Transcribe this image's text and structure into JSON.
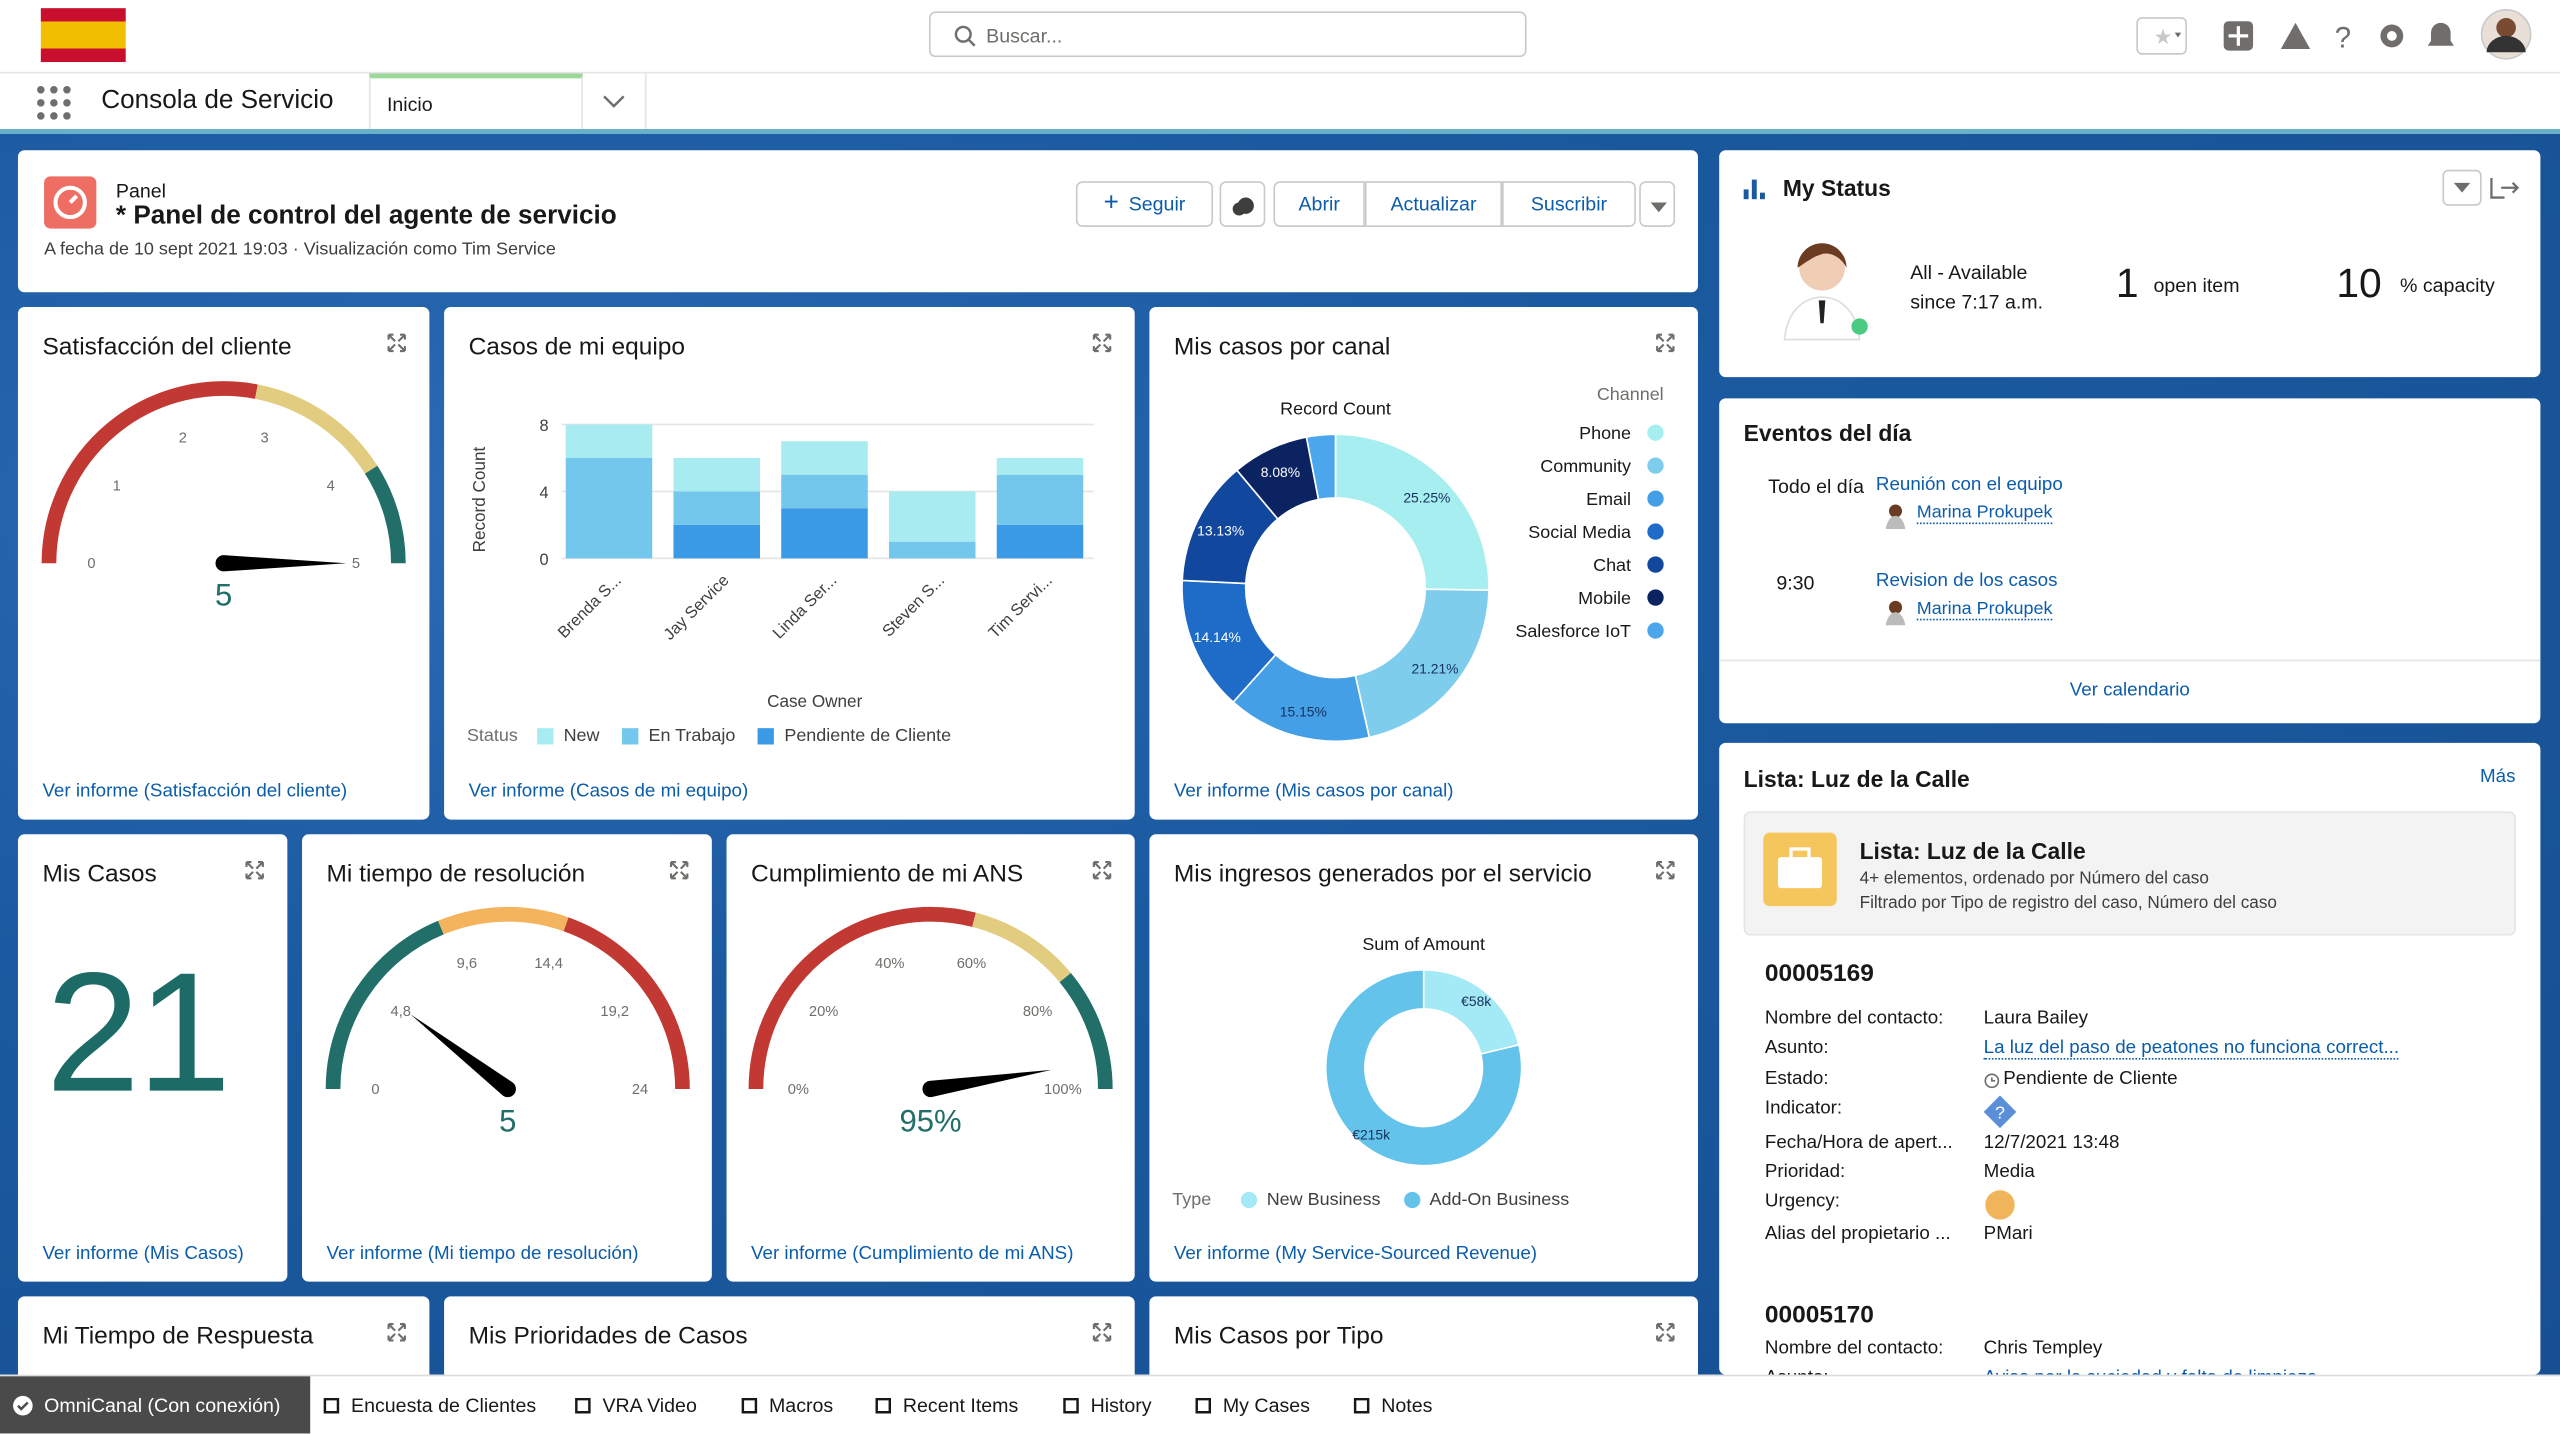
{
  "header": {
    "search_placeholder": "Buscar...",
    "app_name": "Consola de Servicio",
    "tab": "Inicio"
  },
  "dashboard": {
    "label": "Panel",
    "title": "* Panel de control del agente de servicio",
    "subtitle": "A fecha de 10 sept 2021 19:03 · Visualización como Tim Service",
    "buttons": [
      "Seguir",
      "Abrir",
      "Actualizar",
      "Suscribir"
    ]
  },
  "widgets": {
    "satisfaction": {
      "type": "gauge",
      "title": "Satisfacción del cliente",
      "ticks": [
        0,
        1,
        2,
        3,
        4,
        5
      ],
      "value": 5,
      "bands": [
        {
          "to": 2.8,
          "color": "#c23934"
        },
        {
          "to": 4.1,
          "color": "#e2cc80"
        },
        {
          "to": 5,
          "color": "#226e68"
        }
      ],
      "link": "Ver informe (Satisfacción del cliente)"
    },
    "team_cases": {
      "type": "bar",
      "title": "Casos de mi equipo",
      "ylabel": "Record Count",
      "xlabel": "Case Owner",
      "ylim": [
        0,
        8
      ],
      "yticks": [
        0,
        4,
        8
      ],
      "grid": true,
      "categories": [
        "Brenda S...",
        "Jay Service",
        "Linda Ser...",
        "Steven S...",
        "Tim Servi..."
      ],
      "legend_title": "Status",
      "series": [
        {
          "name": "Pendiente de Cliente",
          "color": "#3a9ae6",
          "values": [
            0,
            2,
            3,
            0,
            2
          ]
        },
        {
          "name": "En Trabajo",
          "color": "#73c7ec",
          "values": [
            6,
            2,
            2,
            1,
            3
          ]
        },
        {
          "name": "New",
          "color": "#a8ecf2",
          "values": [
            2,
            2,
            2,
            3,
            1
          ]
        }
      ],
      "legend_order": [
        2,
        1,
        0
      ],
      "link": "Ver informe (Casos de mi equipo)"
    },
    "channel": {
      "type": "donut",
      "title": "Mis casos por canal",
      "label": "Record Count",
      "legend_title": "Channel",
      "categories": [
        "Phone",
        "Community",
        "Email",
        "Social Media",
        "Chat",
        "Mobile",
        "Salesforce IoT"
      ],
      "colors": [
        "#a6eef0",
        "#7ecdec",
        "#449fe6",
        "#1e6bc8",
        "#11479c",
        "#0b2461",
        "#4ca6ec"
      ],
      "values": [
        25.25,
        21.21,
        15.15,
        14.14,
        13.13,
        8.08,
        3.03
      ],
      "value_labels": [
        "25.25%",
        "21.21%",
        "15.15%",
        "14.14%",
        "13.13%",
        "8.08%",
        null
      ],
      "link": "Ver informe (Mis casos por canal)"
    },
    "my_cases": {
      "type": "metric",
      "title": "Mis Casos",
      "value": 21,
      "link": "Ver informe (Mis Casos)"
    },
    "resolution": {
      "type": "gauge",
      "title": "Mi tiempo de resolución",
      "ticks": [
        0,
        {
          "value": 4.8,
          "label": "4,8"
        },
        {
          "value": 9.6,
          "label": "9,6"
        },
        {
          "value": 14.4,
          "label": "14,4"
        },
        {
          "value": 19.2,
          "label": "19,2"
        },
        24
      ],
      "value": 5,
      "bands": [
        {
          "to": 9,
          "color": "#226e68"
        },
        {
          "to": 14.6,
          "color": "#f4b45e"
        },
        {
          "to": 24,
          "color": "#c23934"
        }
      ],
      "link": "Ver informe (Mi tiempo de resolución)"
    },
    "sla": {
      "type": "gauge",
      "title": "Cumplimiento de mi ANS",
      "ticks": [
        {
          "value": 0,
          "label": "0%"
        },
        {
          "value": 20,
          "label": "20%"
        },
        {
          "value": 40,
          "label": "40%"
        },
        {
          "value": 60,
          "label": "60%"
        },
        {
          "value": 80,
          "label": "80%"
        },
        {
          "value": 100,
          "label": "100%"
        }
      ],
      "value": 95,
      "value_label": "95%",
      "bands": [
        {
          "to": 58,
          "color": "#c23934"
        },
        {
          "to": 78,
          "color": "#e2cc80"
        },
        {
          "to": 100,
          "color": "#226e68"
        }
      ],
      "link": "Ver informe (Cumplimiento de mi ANS)"
    },
    "revenue": {
      "type": "donut",
      "title": "Mis ingresos generados por el servicio",
      "label": "Sum of Amount",
      "legend_title": "Type",
      "categories": [
        "New Business",
        "Add-On Business"
      ],
      "colors": [
        "#a4e9f6",
        "#64c3ea"
      ],
      "values": [
        58000,
        215000
      ],
      "value_labels": [
        "€58k",
        "€215k"
      ],
      "link": "Ver informe (My Service-Sourced Revenue)"
    },
    "response": {
      "title": "Mi Tiempo de Respuesta"
    },
    "priorities": {
      "title": "Mis Prioridades de Casos"
    },
    "by_type": {
      "title": "Mis Casos por Tipo"
    }
  },
  "status": {
    "title": "My Status",
    "state": "All - Available",
    "since": "since 7:17 a.m.",
    "open_count": 1,
    "open_label": "open item",
    "capacity": 10,
    "capacity_label": "% capacity"
  },
  "events": {
    "title": "Eventos del día",
    "items": [
      {
        "time": "Todo el día",
        "subject": "Reunión con el equipo",
        "owner": "Marina Prokupek"
      },
      {
        "time": "9:30",
        "subject": "Revision de los casos",
        "owner": "Marina Prokupek"
      }
    ],
    "link": "Ver calendario"
  },
  "list": {
    "title": "Lista: Luz de la Calle",
    "more": "Más",
    "card_title": "Lista: Luz de la Calle",
    "card_line1": "4+ elementos, ordenado por Número del caso",
    "card_line2": "Filtrado por Tipo de registro del caso, Número del caso",
    "records": [
      {
        "number": "00005169",
        "fields": [
          {
            "label": "Nombre del contacto:",
            "value": "Laura Bailey"
          },
          {
            "label": "Asunto:",
            "value": "La luz del paso de peatones no funciona correct...",
            "link": true
          },
          {
            "label": "Estado:",
            "value": "Pendiente de Cliente"
          },
          {
            "label": "Indicator:",
            "icon_color": "#5b8fd8"
          },
          {
            "label": "Fecha/Hora de apert...",
            "value": "12/7/2021 13:48"
          },
          {
            "label": "Prioridad:",
            "value": "Media"
          },
          {
            "label": "Urgency:",
            "icon_color": "#f0b45a"
          },
          {
            "label": "Alias del propietario ...",
            "value": "PMari"
          }
        ]
      },
      {
        "number": "00005170",
        "fields": [
          {
            "label": "Nombre del contacto:",
            "value": "Chris Templey"
          },
          {
            "label": "Asunto:",
            "value": "Aviso por la suciedad y falta de limpieza",
            "link": true
          }
        ]
      }
    ]
  },
  "footer": {
    "items": [
      "OmniCanal (Con conexión)",
      "Encuesta de Clientes",
      "VRA Video",
      "Macros",
      "Recent Items",
      "History",
      "My Cases",
      "Notes"
    ]
  }
}
